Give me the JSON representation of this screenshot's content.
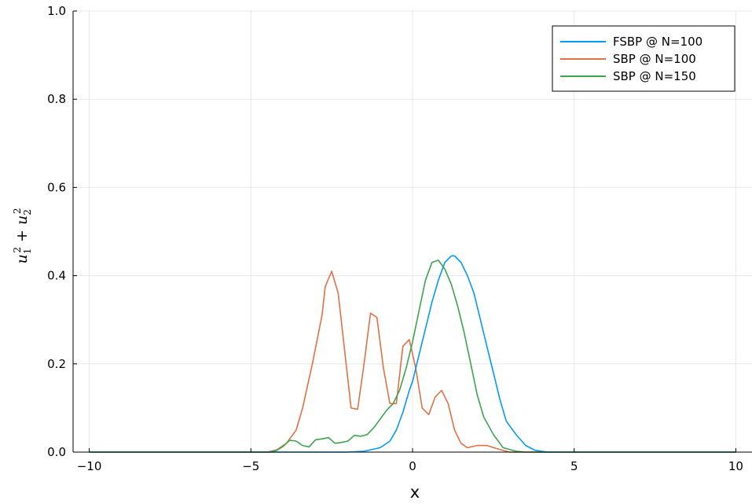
{
  "chart_data": {
    "type": "line",
    "xlabel": "x",
    "ylabel": {
      "var": "u",
      "sub1": "1",
      "sub2": "2",
      "sup": "2",
      "op": "+"
    },
    "xlim": [
      -10.5,
      10.5
    ],
    "ylim": [
      0,
      1.0
    ],
    "xticks": [
      -10,
      -5,
      0,
      5,
      10
    ],
    "xtick_labels": [
      "−10",
      "−5",
      "0",
      "5",
      "10"
    ],
    "yticks": [
      0,
      0.2,
      0.4,
      0.6,
      0.8,
      1.0
    ],
    "ytick_labels": [
      "0.0",
      "0.2",
      "0.4",
      "0.6",
      "0.8",
      "1.0"
    ],
    "grid": true,
    "legend_position": "top-right",
    "series": [
      {
        "name": "FSBP @ N=100",
        "color": "#009af9",
        "points": [
          [
            -10,
            0
          ],
          [
            -3,
            0
          ],
          [
            -2,
            0
          ],
          [
            -1.5,
            0.002
          ],
          [
            -1,
            0.01
          ],
          [
            -0.7,
            0.025
          ],
          [
            -0.5,
            0.05
          ],
          [
            -0.3,
            0.09
          ],
          [
            -0.1,
            0.14
          ],
          [
            0,
            0.16
          ],
          [
            0.2,
            0.22
          ],
          [
            0.4,
            0.28
          ],
          [
            0.6,
            0.34
          ],
          [
            0.8,
            0.39
          ],
          [
            1.0,
            0.43
          ],
          [
            1.2,
            0.445
          ],
          [
            1.3,
            0.445
          ],
          [
            1.5,
            0.43
          ],
          [
            1.7,
            0.4
          ],
          [
            1.9,
            0.36
          ],
          [
            2.1,
            0.3
          ],
          [
            2.3,
            0.24
          ],
          [
            2.5,
            0.18
          ],
          [
            2.7,
            0.12
          ],
          [
            2.9,
            0.07
          ],
          [
            3.2,
            0.04
          ],
          [
            3.5,
            0.015
          ],
          [
            3.8,
            0.004
          ],
          [
            4.2,
            0.0
          ],
          [
            10,
            0
          ]
        ]
      },
      {
        "name": "SBP @ N=100",
        "color": "#e26f46",
        "points": [
          [
            -10,
            0
          ],
          [
            -4.5,
            0
          ],
          [
            -4.2,
            0.005
          ],
          [
            -3.9,
            0.02
          ],
          [
            -3.6,
            0.05
          ],
          [
            -3.4,
            0.1
          ],
          [
            -3.1,
            0.2
          ],
          [
            -2.8,
            0.31
          ],
          [
            -2.7,
            0.375
          ],
          [
            -2.5,
            0.41
          ],
          [
            -2.3,
            0.36
          ],
          [
            -2.1,
            0.23
          ],
          [
            -1.9,
            0.1
          ],
          [
            -1.7,
            0.097
          ],
          [
            -1.5,
            0.2
          ],
          [
            -1.3,
            0.315
          ],
          [
            -1.1,
            0.305
          ],
          [
            -0.9,
            0.19
          ],
          [
            -0.7,
            0.11
          ],
          [
            -0.5,
            0.11
          ],
          [
            -0.3,
            0.24
          ],
          [
            -0.1,
            0.255
          ],
          [
            0.1,
            0.19
          ],
          [
            0.3,
            0.1
          ],
          [
            0.5,
            0.085
          ],
          [
            0.7,
            0.125
          ],
          [
            0.9,
            0.14
          ],
          [
            1.1,
            0.11
          ],
          [
            1.3,
            0.05
          ],
          [
            1.5,
            0.02
          ],
          [
            1.7,
            0.01
          ],
          [
            2.0,
            0.015
          ],
          [
            2.3,
            0.015
          ],
          [
            2.6,
            0.008
          ],
          [
            3.0,
            0.0
          ],
          [
            10,
            0
          ]
        ]
      },
      {
        "name": "SBP @ N=150",
        "color": "#3da44d",
        "points": [
          [
            -10,
            0
          ],
          [
            -4.4,
            0
          ],
          [
            -4.2,
            0.004
          ],
          [
            -4.0,
            0.013
          ],
          [
            -3.8,
            0.027
          ],
          [
            -3.6,
            0.025
          ],
          [
            -3.4,
            0.015
          ],
          [
            -3.2,
            0.012
          ],
          [
            -3.0,
            0.028
          ],
          [
            -2.8,
            0.03
          ],
          [
            -2.6,
            0.033
          ],
          [
            -2.4,
            0.02
          ],
          [
            -2.2,
            0.022
          ],
          [
            -2.0,
            0.025
          ],
          [
            -1.8,
            0.038
          ],
          [
            -1.6,
            0.036
          ],
          [
            -1.4,
            0.04
          ],
          [
            -1.2,
            0.055
          ],
          [
            -1.0,
            0.075
          ],
          [
            -0.8,
            0.095
          ],
          [
            -0.6,
            0.11
          ],
          [
            -0.4,
            0.14
          ],
          [
            -0.2,
            0.19
          ],
          [
            0,
            0.25
          ],
          [
            0.2,
            0.32
          ],
          [
            0.4,
            0.39
          ],
          [
            0.6,
            0.43
          ],
          [
            0.8,
            0.435
          ],
          [
            1.0,
            0.415
          ],
          [
            1.2,
            0.38
          ],
          [
            1.4,
            0.33
          ],
          [
            1.6,
            0.27
          ],
          [
            1.8,
            0.2
          ],
          [
            2.0,
            0.13
          ],
          [
            2.2,
            0.08
          ],
          [
            2.5,
            0.04
          ],
          [
            2.8,
            0.01
          ],
          [
            3.2,
            0.002
          ],
          [
            3.5,
            0.0
          ],
          [
            10,
            0
          ]
        ]
      }
    ]
  }
}
